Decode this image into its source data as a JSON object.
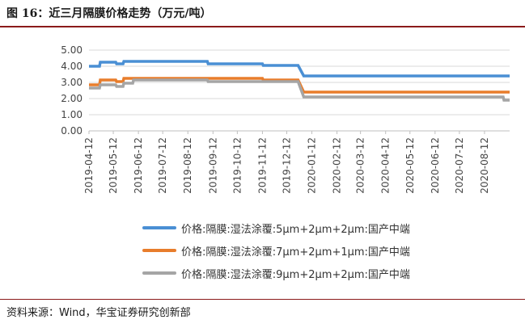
{
  "figure": {
    "title": "图 16：近三月隔膜价格走势（万元/吨）",
    "source": "资料来源：Wind，华宝证券研究创新部"
  },
  "chart_data": {
    "type": "line",
    "title": "",
    "xlabel": "",
    "ylabel": "",
    "ylim": [
      0,
      5
    ],
    "yticks": [
      "0.00",
      "1.00",
      "2.00",
      "3.00",
      "4.00",
      "5.00"
    ],
    "xticks": [
      "2019-04-12",
      "2019-05-12",
      "2019-06-12",
      "2019-07-12",
      "2019-08-12",
      "2019-09-12",
      "2019-10-12",
      "2019-11-12",
      "2019-12-12",
      "2020-01-12",
      "2020-02-12",
      "2020-03-12",
      "2020-04-12",
      "2020-05-12",
      "2020-06-12",
      "2020-07-12",
      "2020-08-12"
    ],
    "x_range": [
      "2019-04-12",
      "2020-09-12"
    ],
    "grid": true,
    "legend": "bottom",
    "series": [
      {
        "name": "价格:隔膜:湿法涂覆:5μm+2μm+2μm:国产中端",
        "color": "#4a8fd4",
        "points": [
          {
            "x": "2019-04-12",
            "y": 4.0
          },
          {
            "x": "2019-04-25",
            "y": 4.0
          },
          {
            "x": "2019-04-26",
            "y": 4.25
          },
          {
            "x": "2019-05-15",
            "y": 4.25
          },
          {
            "x": "2019-05-16",
            "y": 4.15
          },
          {
            "x": "2019-05-24",
            "y": 4.15
          },
          {
            "x": "2019-05-25",
            "y": 4.3
          },
          {
            "x": "2019-09-05",
            "y": 4.3
          },
          {
            "x": "2019-09-06",
            "y": 4.15
          },
          {
            "x": "2019-11-12",
            "y": 4.15
          },
          {
            "x": "2019-11-13",
            "y": 4.05
          },
          {
            "x": "2019-12-26",
            "y": 4.05
          },
          {
            "x": "2020-01-02",
            "y": 3.4
          },
          {
            "x": "2020-09-12",
            "y": 3.4
          }
        ]
      },
      {
        "name": "价格:隔膜:湿法涂覆:7μm+2μm+1μm:国产中端",
        "color": "#e87d2c",
        "points": [
          {
            "x": "2019-04-12",
            "y": 2.85
          },
          {
            "x": "2019-04-25",
            "y": 2.85
          },
          {
            "x": "2019-04-26",
            "y": 3.15
          },
          {
            "x": "2019-05-15",
            "y": 3.15
          },
          {
            "x": "2019-05-16",
            "y": 3.05
          },
          {
            "x": "2019-05-24",
            "y": 3.05
          },
          {
            "x": "2019-05-25",
            "y": 3.25
          },
          {
            "x": "2019-11-12",
            "y": 3.25
          },
          {
            "x": "2019-11-13",
            "y": 3.15
          },
          {
            "x": "2019-12-26",
            "y": 3.15
          },
          {
            "x": "2020-01-02",
            "y": 2.4
          },
          {
            "x": "2020-09-12",
            "y": 2.4
          }
        ]
      },
      {
        "name": "价格:隔膜:湿法涂覆:9μm+2μm+2μm:国产中端",
        "color": "#a5a5a5",
        "points": [
          {
            "x": "2019-04-12",
            "y": 2.65
          },
          {
            "x": "2019-04-25",
            "y": 2.65
          },
          {
            "x": "2019-04-26",
            "y": 2.85
          },
          {
            "x": "2019-05-15",
            "y": 2.85
          },
          {
            "x": "2019-05-16",
            "y": 2.75
          },
          {
            "x": "2019-05-24",
            "y": 2.75
          },
          {
            "x": "2019-05-25",
            "y": 2.95
          },
          {
            "x": "2019-06-05",
            "y": 2.95
          },
          {
            "x": "2019-06-06",
            "y": 3.15
          },
          {
            "x": "2019-09-05",
            "y": 3.15
          },
          {
            "x": "2019-09-06",
            "y": 3.05
          },
          {
            "x": "2019-12-26",
            "y": 3.05
          },
          {
            "x": "2020-01-02",
            "y": 2.1
          },
          {
            "x": "2020-09-04",
            "y": 2.1
          },
          {
            "x": "2020-09-05",
            "y": 1.9
          },
          {
            "x": "2020-09-12",
            "y": 1.9
          }
        ]
      }
    ]
  }
}
